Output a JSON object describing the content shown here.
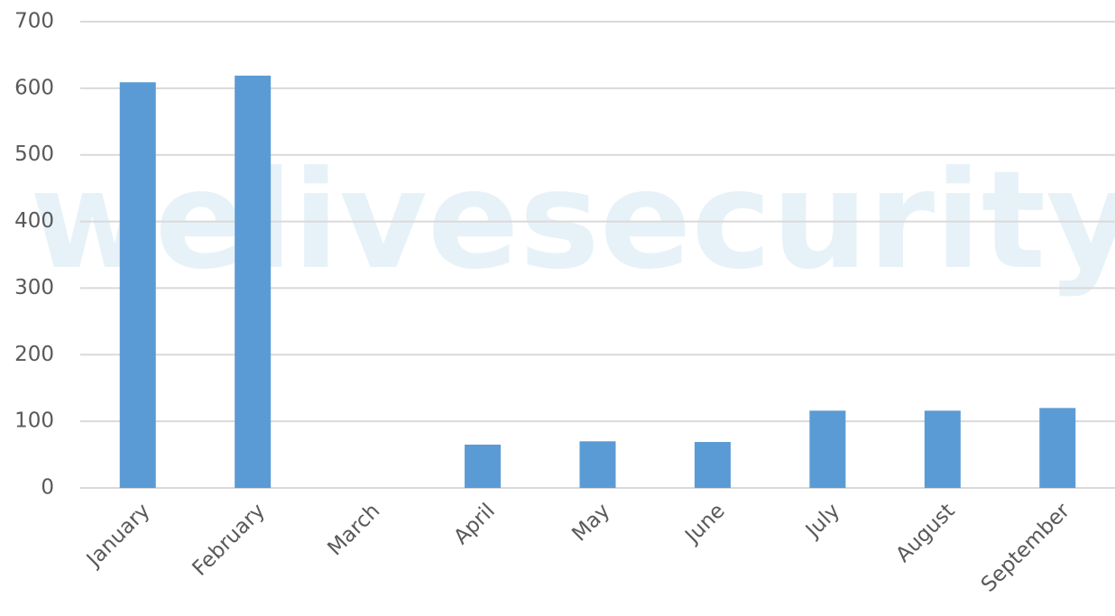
{
  "chart_data": {
    "type": "bar",
    "watermark": "welivesecurity",
    "categories": [
      "January",
      "February",
      "March",
      "April",
      "May",
      "June",
      "July",
      "August",
      "September"
    ],
    "values": [
      609,
      619,
      0,
      65,
      70,
      69,
      116,
      116,
      120
    ],
    "color": "#5b9bd5",
    "ylim": [
      0,
      700
    ],
    "yticks": [
      0,
      100,
      200,
      300,
      400,
      500,
      600,
      700
    ],
    "grid": true
  }
}
